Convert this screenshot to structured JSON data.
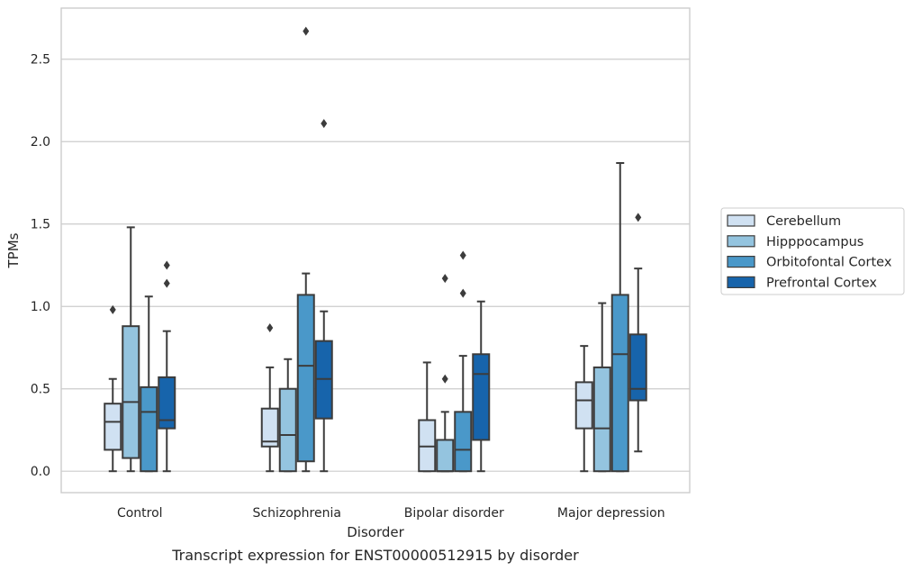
{
  "caption": "Transcript expression for ENST00000512915 by disorder",
  "chart_data": {
    "type": "boxplot",
    "xlabel": "Disorder",
    "ylabel": "TPMs",
    "ylim": [
      -0.13,
      2.81
    ],
    "yticks": [
      0.0,
      0.5,
      1.0,
      1.5,
      2.0,
      2.5
    ],
    "ytick_labels": [
      "0.0",
      "0.5",
      "1.0",
      "1.5",
      "2.0",
      "2.5"
    ],
    "grid": "horizontal",
    "legend_position": "right",
    "categories": [
      "Control",
      "Schizophrenia",
      "Bipolar disorder",
      "Major depression"
    ],
    "series": [
      {
        "name": "Cerebellum",
        "color": "#d0e1f2",
        "boxes": [
          {
            "whislo": 0.0,
            "q1": 0.13,
            "med": 0.3,
            "q3": 0.41,
            "whishi": 0.56,
            "fliers": [
              0.98
            ]
          },
          {
            "whislo": 0.0,
            "q1": 0.15,
            "med": 0.18,
            "q3": 0.38,
            "whishi": 0.63,
            "fliers": [
              0.87
            ]
          },
          {
            "whislo": 0.0,
            "q1": 0.0,
            "med": 0.15,
            "q3": 0.31,
            "whishi": 0.66,
            "fliers": []
          },
          {
            "whislo": 0.0,
            "q1": 0.26,
            "med": 0.43,
            "q3": 0.54,
            "whishi": 0.76,
            "fliers": []
          }
        ]
      },
      {
        "name": "Hipppocampus",
        "color": "#94c4df",
        "boxes": [
          {
            "whislo": 0.0,
            "q1": 0.08,
            "med": 0.42,
            "q3": 0.88,
            "whishi": 1.48,
            "fliers": []
          },
          {
            "whislo": 0.0,
            "q1": 0.0,
            "med": 0.22,
            "q3": 0.5,
            "whishi": 0.68,
            "fliers": []
          },
          {
            "whislo": 0.0,
            "q1": 0.0,
            "med": 0.0,
            "q3": 0.19,
            "whishi": 0.36,
            "fliers": [
              0.56,
              1.17
            ]
          },
          {
            "whislo": 0.0,
            "q1": 0.0,
            "med": 0.26,
            "q3": 0.63,
            "whishi": 1.02,
            "fliers": []
          }
        ]
      },
      {
        "name": "Orbitofontal Cortex",
        "color": "#4a98c9",
        "boxes": [
          {
            "whislo": 0.0,
            "q1": 0.0,
            "med": 0.36,
            "q3": 0.51,
            "whishi": 1.06,
            "fliers": []
          },
          {
            "whislo": 0.0,
            "q1": 0.06,
            "med": 0.64,
            "q3": 1.07,
            "whishi": 1.2,
            "fliers": [
              2.67
            ]
          },
          {
            "whislo": 0.0,
            "q1": 0.0,
            "med": 0.13,
            "q3": 0.36,
            "whishi": 0.7,
            "fliers": [
              1.08,
              1.31
            ]
          },
          {
            "whislo": 0.0,
            "q1": 0.0,
            "med": 0.71,
            "q3": 1.07,
            "whishi": 1.87,
            "fliers": []
          }
        ]
      },
      {
        "name": "Prefrontal Cortex",
        "color": "#1764ab",
        "boxes": [
          {
            "whislo": 0.0,
            "q1": 0.26,
            "med": 0.31,
            "q3": 0.57,
            "whishi": 0.85,
            "fliers": [
              1.14,
              1.25
            ]
          },
          {
            "whislo": 0.0,
            "q1": 0.32,
            "med": 0.56,
            "q3": 0.79,
            "whishi": 0.97,
            "fliers": [
              2.11
            ]
          },
          {
            "whislo": 0.0,
            "q1": 0.19,
            "med": 0.59,
            "q3": 0.71,
            "whishi": 1.03,
            "fliers": []
          },
          {
            "whislo": 0.12,
            "q1": 0.43,
            "med": 0.5,
            "q3": 0.83,
            "whishi": 1.23,
            "fliers": [
              1.54
            ]
          }
        ]
      }
    ]
  }
}
